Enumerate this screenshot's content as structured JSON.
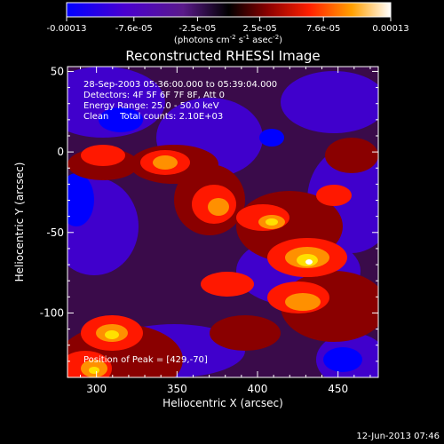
{
  "chart_data": {
    "type": "heatmap",
    "title": "Reconstructed RHESSI Image",
    "xlabel": "Heliocentric X (arcsec)",
    "ylabel": "Heliocentric Y (arcsec)",
    "xlim": [
      282,
      475
    ],
    "ylim": [
      -140,
      53
    ],
    "x_ticks": [
      "300",
      "350",
      "400",
      "450"
    ],
    "x_tick_values": [
      300,
      350,
      400,
      450
    ],
    "y_ticks": [
      "50",
      "0",
      "-50",
      "-100"
    ],
    "y_tick_values": [
      50,
      0,
      -50,
      -100
    ],
    "colorbar": {
      "labels": [
        "-0.00013",
        "-7.6e-05",
        "-2.5e-05",
        "2.5e-05",
        "7.6e-05",
        "0.00013"
      ],
      "values": [
        -0.00013,
        -7.6e-05,
        -2.5e-05,
        2.5e-05,
        7.6e-05,
        0.00013
      ],
      "range": [
        -0.00013,
        0.00013
      ],
      "unit_prefix": "(photons cm",
      "unit_exp1": "-2",
      "unit_mid": " s",
      "unit_exp2": "-1",
      "unit_mid2": " asec",
      "unit_exp3": "-2",
      "unit_suffix": ")"
    },
    "annotations": [
      "28-Sep-2003 05:36:00.000 to 05:39:04.000",
      "Detectors: 4F 5F 6F 7F 8F, Att 0",
      "Energy Range: 25.0 - 50.0 keV",
      "Clean    Total counts: 2.10E+03"
    ],
    "peak_label": "Position of Peak = [429,-70]",
    "peak": [
      429,
      -70
    ],
    "colors": [
      "#0000ff",
      "#4000cc",
      "#7000aa",
      "#3a0b4a",
      "#1a0020",
      "#8a0000",
      "#ff1800",
      "#ff9000",
      "#ffe000",
      "#ffffff"
    ]
  },
  "footer_date": "12-Jun-2013 07:46"
}
